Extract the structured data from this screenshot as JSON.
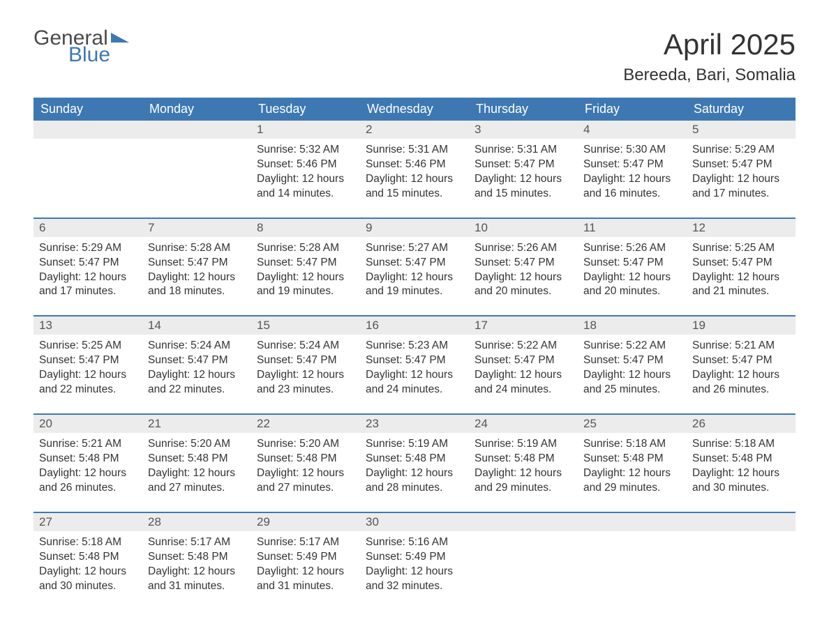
{
  "brand": {
    "text1": "General",
    "text2": "Blue",
    "color_text": "#4a4a4a",
    "color_accent": "#3e78b3"
  },
  "title": "April 2025",
  "location": "Bereeda, Bari, Somalia",
  "colors": {
    "header_bg": "#3e78b3",
    "header_text": "#ffffff",
    "date_row_bg": "#ececec",
    "date_text": "#555555",
    "body_text": "#333333",
    "week_border": "#3e78b3",
    "page_bg": "#ffffff"
  },
  "typography": {
    "title_fontsize": 42,
    "location_fontsize": 24,
    "header_fontsize": 18,
    "date_fontsize": 17,
    "cell_fontsize": 15.5
  },
  "labels": {
    "sunrise": "Sunrise:",
    "sunset": "Sunset:",
    "daylight": "Daylight:"
  },
  "day_names": [
    "Sunday",
    "Monday",
    "Tuesday",
    "Wednesday",
    "Thursday",
    "Friday",
    "Saturday"
  ],
  "weeks": [
    [
      null,
      null,
      {
        "d": "1",
        "sr": "5:32 AM",
        "ss": "5:46 PM",
        "dl": "12 hours and 14 minutes."
      },
      {
        "d": "2",
        "sr": "5:31 AM",
        "ss": "5:46 PM",
        "dl": "12 hours and 15 minutes."
      },
      {
        "d": "3",
        "sr": "5:31 AM",
        "ss": "5:47 PM",
        "dl": "12 hours and 15 minutes."
      },
      {
        "d": "4",
        "sr": "5:30 AM",
        "ss": "5:47 PM",
        "dl": "12 hours and 16 minutes."
      },
      {
        "d": "5",
        "sr": "5:29 AM",
        "ss": "5:47 PM",
        "dl": "12 hours and 17 minutes."
      }
    ],
    [
      {
        "d": "6",
        "sr": "5:29 AM",
        "ss": "5:47 PM",
        "dl": "12 hours and 17 minutes."
      },
      {
        "d": "7",
        "sr": "5:28 AM",
        "ss": "5:47 PM",
        "dl": "12 hours and 18 minutes."
      },
      {
        "d": "8",
        "sr": "5:28 AM",
        "ss": "5:47 PM",
        "dl": "12 hours and 19 minutes."
      },
      {
        "d": "9",
        "sr": "5:27 AM",
        "ss": "5:47 PM",
        "dl": "12 hours and 19 minutes."
      },
      {
        "d": "10",
        "sr": "5:26 AM",
        "ss": "5:47 PM",
        "dl": "12 hours and 20 minutes."
      },
      {
        "d": "11",
        "sr": "5:26 AM",
        "ss": "5:47 PM",
        "dl": "12 hours and 20 minutes."
      },
      {
        "d": "12",
        "sr": "5:25 AM",
        "ss": "5:47 PM",
        "dl": "12 hours and 21 minutes."
      }
    ],
    [
      {
        "d": "13",
        "sr": "5:25 AM",
        "ss": "5:47 PM",
        "dl": "12 hours and 22 minutes."
      },
      {
        "d": "14",
        "sr": "5:24 AM",
        "ss": "5:47 PM",
        "dl": "12 hours and 22 minutes."
      },
      {
        "d": "15",
        "sr": "5:24 AM",
        "ss": "5:47 PM",
        "dl": "12 hours and 23 minutes."
      },
      {
        "d": "16",
        "sr": "5:23 AM",
        "ss": "5:47 PM",
        "dl": "12 hours and 24 minutes."
      },
      {
        "d": "17",
        "sr": "5:22 AM",
        "ss": "5:47 PM",
        "dl": "12 hours and 24 minutes."
      },
      {
        "d": "18",
        "sr": "5:22 AM",
        "ss": "5:47 PM",
        "dl": "12 hours and 25 minutes."
      },
      {
        "d": "19",
        "sr": "5:21 AM",
        "ss": "5:47 PM",
        "dl": "12 hours and 26 minutes."
      }
    ],
    [
      {
        "d": "20",
        "sr": "5:21 AM",
        "ss": "5:48 PM",
        "dl": "12 hours and 26 minutes."
      },
      {
        "d": "21",
        "sr": "5:20 AM",
        "ss": "5:48 PM",
        "dl": "12 hours and 27 minutes."
      },
      {
        "d": "22",
        "sr": "5:20 AM",
        "ss": "5:48 PM",
        "dl": "12 hours and 27 minutes."
      },
      {
        "d": "23",
        "sr": "5:19 AM",
        "ss": "5:48 PM",
        "dl": "12 hours and 28 minutes."
      },
      {
        "d": "24",
        "sr": "5:19 AM",
        "ss": "5:48 PM",
        "dl": "12 hours and 29 minutes."
      },
      {
        "d": "25",
        "sr": "5:18 AM",
        "ss": "5:48 PM",
        "dl": "12 hours and 29 minutes."
      },
      {
        "d": "26",
        "sr": "5:18 AM",
        "ss": "5:48 PM",
        "dl": "12 hours and 30 minutes."
      }
    ],
    [
      {
        "d": "27",
        "sr": "5:18 AM",
        "ss": "5:48 PM",
        "dl": "12 hours and 30 minutes."
      },
      {
        "d": "28",
        "sr": "5:17 AM",
        "ss": "5:48 PM",
        "dl": "12 hours and 31 minutes."
      },
      {
        "d": "29",
        "sr": "5:17 AM",
        "ss": "5:49 PM",
        "dl": "12 hours and 31 minutes."
      },
      {
        "d": "30",
        "sr": "5:16 AM",
        "ss": "5:49 PM",
        "dl": "12 hours and 32 minutes."
      },
      null,
      null,
      null
    ]
  ]
}
